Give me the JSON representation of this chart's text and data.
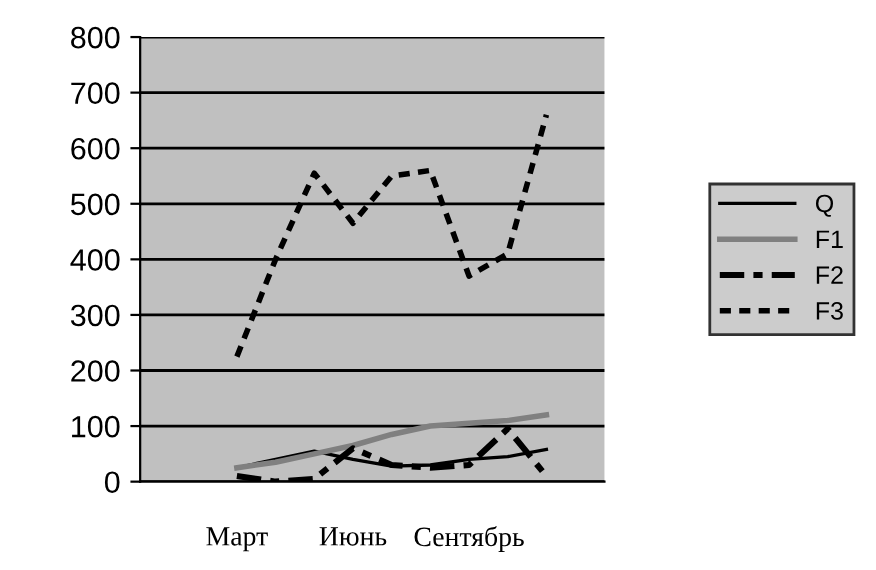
{
  "chart_data": {
    "type": "line",
    "categories": [
      null,
      null,
      "Март",
      null,
      null,
      "Июнь",
      null,
      null,
      "Сентябрь",
      null,
      null,
      null
    ],
    "series": [
      {
        "name": "Q",
        "color": "#000000",
        "line_style": "solid",
        "values": [
          null,
          null,
          25,
          40,
          55,
          40,
          28,
          30,
          40,
          45,
          58,
          null
        ]
      },
      {
        "name": "F1",
        "color": "#808080",
        "line_style": "solid",
        "values": [
          null,
          null,
          25,
          35,
          50,
          65,
          85,
          100,
          105,
          110,
          120,
          null
        ]
      },
      {
        "name": "F2",
        "color": "#000000",
        "line_style": "dashdot",
        "values": [
          null,
          null,
          10,
          0,
          5,
          60,
          30,
          25,
          30,
          95,
          10,
          null
        ]
      },
      {
        "name": "F3",
        "color": "#000000",
        "line_style": "dashed",
        "values": [
          null,
          null,
          225,
          400,
          555,
          465,
          550,
          560,
          370,
          410,
          660,
          null
        ]
      }
    ],
    "ylim": [
      0,
      800
    ],
    "yticks": [
      0,
      100,
      200,
      300,
      400,
      500,
      600,
      700,
      800
    ],
    "grid": "y",
    "legend": "right",
    "marker": "none"
  }
}
